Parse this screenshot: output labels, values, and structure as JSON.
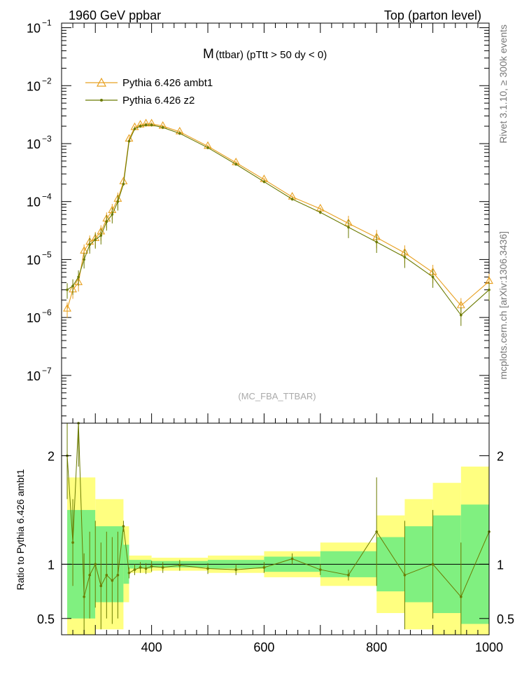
{
  "header": {
    "left": "1960 GeV ppbar",
    "right": "Top (parton level)"
  },
  "side": {
    "rivet": "Rivet 3.1.10, ≥ 300k events",
    "source": "mcplots.cern.ch [arXiv:1306.3436]"
  },
  "colors": {
    "ambt1": "#e8a020",
    "z2": "#6b7a00",
    "band_yellow": "#ffff80",
    "band_green": "#80f080"
  },
  "chart_data": [
    {
      "type": "line",
      "title": "M (ttbar) (pTtt > 50 dy < 0)",
      "title_main": "M",
      "title_rest": "(ttbar) (pTtt > 50 dy < 0)",
      "watermark": "(MC_FBA_TTBAR)",
      "yscale": "log",
      "xlim": [
        240,
        1000
      ],
      "ylim": [
        1.5e-08,
        0.12
      ],
      "ytick_labels": [
        {
          "base": "10",
          "exp": "−1",
          "value": 0.1
        },
        {
          "base": "10",
          "exp": "−2",
          "value": 0.01
        },
        {
          "base": "10",
          "exp": "−3",
          "value": 0.001
        },
        {
          "base": "10",
          "exp": "−4",
          "value": 0.0001
        },
        {
          "base": "10",
          "exp": "−5",
          "value": 1e-05
        },
        {
          "base": "10",
          "exp": "−6",
          "value": 1e-06
        },
        {
          "base": "10",
          "exp": "−7",
          "value": 1e-07
        }
      ],
      "legend_position": "top-left",
      "series": [
        {
          "name": "Pythia 6.426 ambt1",
          "marker": "triangle",
          "x": [
            250,
            260,
            270,
            280,
            290,
            300,
            310,
            320,
            330,
            340,
            350,
            360,
            370,
            380,
            390,
            400,
            420,
            450,
            500,
            550,
            600,
            650,
            700,
            750,
            800,
            850,
            900,
            950,
            1000
          ],
          "y": [
            1.4e-06,
            3e-06,
            4e-06,
            1.4e-05,
            2e-05,
            2.3e-05,
            3e-05,
            5e-05,
            7e-05,
            0.00011,
            0.00022,
            0.0012,
            0.0019,
            0.0021,
            0.0022,
            0.0022,
            0.002,
            0.0016,
            0.0009,
            0.00047,
            0.00024,
            0.00012,
            7.5e-05,
            4.2e-05,
            2.4e-05,
            1.3e-05,
            6e-06,
            1.6e-06,
            4.2e-06
          ]
        },
        {
          "name": "Pythia 6.426 z2",
          "marker": "dot",
          "x": [
            250,
            260,
            270,
            280,
            290,
            300,
            310,
            320,
            330,
            340,
            350,
            360,
            370,
            380,
            390,
            400,
            420,
            450,
            500,
            550,
            600,
            650,
            700,
            750,
            800,
            850,
            900,
            950,
            1000
          ],
          "y": [
            3e-06,
            3.5e-06,
            5e-06,
            1e-05,
            1.8e-05,
            2.2e-05,
            2.6e-05,
            4.5e-05,
            6e-05,
            0.0001,
            0.0002,
            0.0011,
            0.0018,
            0.002,
            0.0021,
            0.0021,
            0.0019,
            0.0015,
            0.00085,
            0.00044,
            0.00022,
            0.00011,
            6.5e-05,
            3.6e-05,
            2e-05,
            1.1e-05,
            5e-06,
            1.1e-06,
            3e-06
          ]
        }
      ]
    },
    {
      "type": "line",
      "ylabel": "Ratio to Pythia 6.426 ambt1",
      "xlim": [
        240,
        1000
      ],
      "ylim": [
        0.35,
        2.3
      ],
      "xtick_labels": [
        "400",
        "600",
        "800",
        "1000"
      ],
      "ytick_labels": [
        "0.5",
        "1",
        "2"
      ],
      "reference": 1,
      "series": [
        {
          "name": "Pythia 6.426 z2 / ambt1",
          "x": [
            250,
            260,
            270,
            280,
            290,
            300,
            310,
            320,
            330,
            340,
            350,
            360,
            370,
            380,
            390,
            400,
            420,
            450,
            500,
            550,
            600,
            650,
            700,
            750,
            800,
            850,
            900,
            950,
            1000
          ],
          "y": [
            2.0,
            1.2,
            2.3,
            0.7,
            0.9,
            1.0,
            0.8,
            0.9,
            0.85,
            0.9,
            1.35,
            0.92,
            0.95,
            0.97,
            0.96,
            0.98,
            0.97,
            0.99,
            0.96,
            0.95,
            0.97,
            1.05,
            0.95,
            0.9,
            1.3,
            0.9,
            1.0,
            0.7,
            1.3
          ]
        }
      ],
      "bands": {
        "x": [
          250,
          300,
          350,
          360,
          400,
          500,
          600,
          700,
          800,
          850,
          900,
          950,
          1000
        ],
        "yellow_half_width": [
          0.8,
          0.6,
          0.35,
          0.08,
          0.06,
          0.08,
          0.12,
          0.2,
          0.45,
          0.6,
          0.75,
          0.9,
          0.95
        ],
        "green_half_width": [
          0.5,
          0.35,
          0.18,
          0.04,
          0.03,
          0.04,
          0.07,
          0.12,
          0.25,
          0.35,
          0.45,
          0.55,
          0.6
        ]
      }
    }
  ]
}
